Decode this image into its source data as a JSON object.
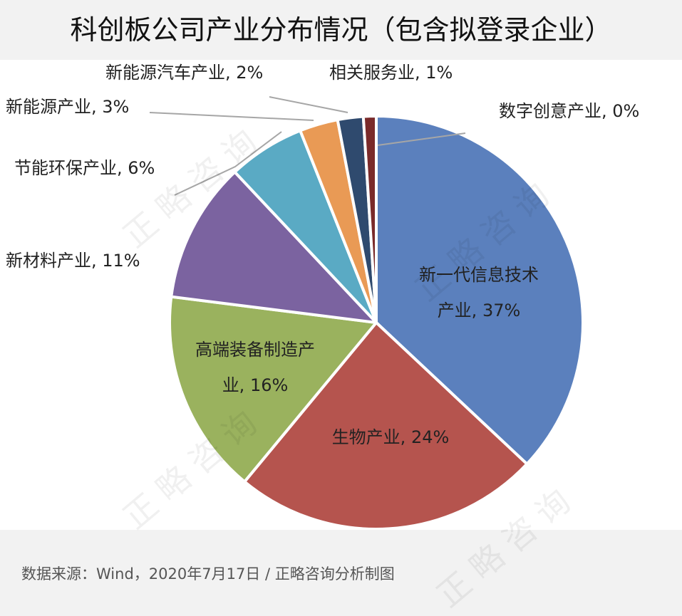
{
  "title": "科创板公司产业分布情况（包含拟登录企业）",
  "source": "数据来源：Wind，2020年7月17日 / 正略咨询分析制图",
  "watermark": "正略咨询",
  "chart_data": {
    "type": "pie",
    "unit": "%",
    "slices": [
      {
        "label": "新一代信息技术产业",
        "label_lines": [
          "新一代信息技术",
          "产业, 37%"
        ],
        "value": 37,
        "color": "#5b80bd"
      },
      {
        "label": "生物产业",
        "label_lines": [
          "生物产业, 24%"
        ],
        "value": 24,
        "color": "#b5544e"
      },
      {
        "label": "高端装备制造产业",
        "label_lines": [
          "高端装备制造产",
          "业, 16%"
        ],
        "value": 16,
        "color": "#9ab25e"
      },
      {
        "label": "新材料产业",
        "label_lines": [
          "新材料产业, 11%"
        ],
        "value": 11,
        "color": "#7b63a0"
      },
      {
        "label": "节能环保产业",
        "label_lines": [
          "节能环保产业, 6%"
        ],
        "value": 6,
        "color": "#5aaac4"
      },
      {
        "label": "新能源产业",
        "label_lines": [
          "新能源产业, 3%"
        ],
        "value": 3,
        "color": "#e99a55"
      },
      {
        "label": "新能源汽车产业",
        "label_lines": [
          "新能源汽车产业, 2%"
        ],
        "value": 2,
        "color": "#2f4a6e"
      },
      {
        "label": "相关服务业",
        "label_lines": [
          "相关服务业, 1%"
        ],
        "value": 1,
        "color": "#7a2a2a"
      },
      {
        "label": "数字创意产业",
        "label_lines": [
          "数字创意产业, 0%"
        ],
        "value": 0,
        "color": "#4f6a3a"
      }
    ]
  }
}
